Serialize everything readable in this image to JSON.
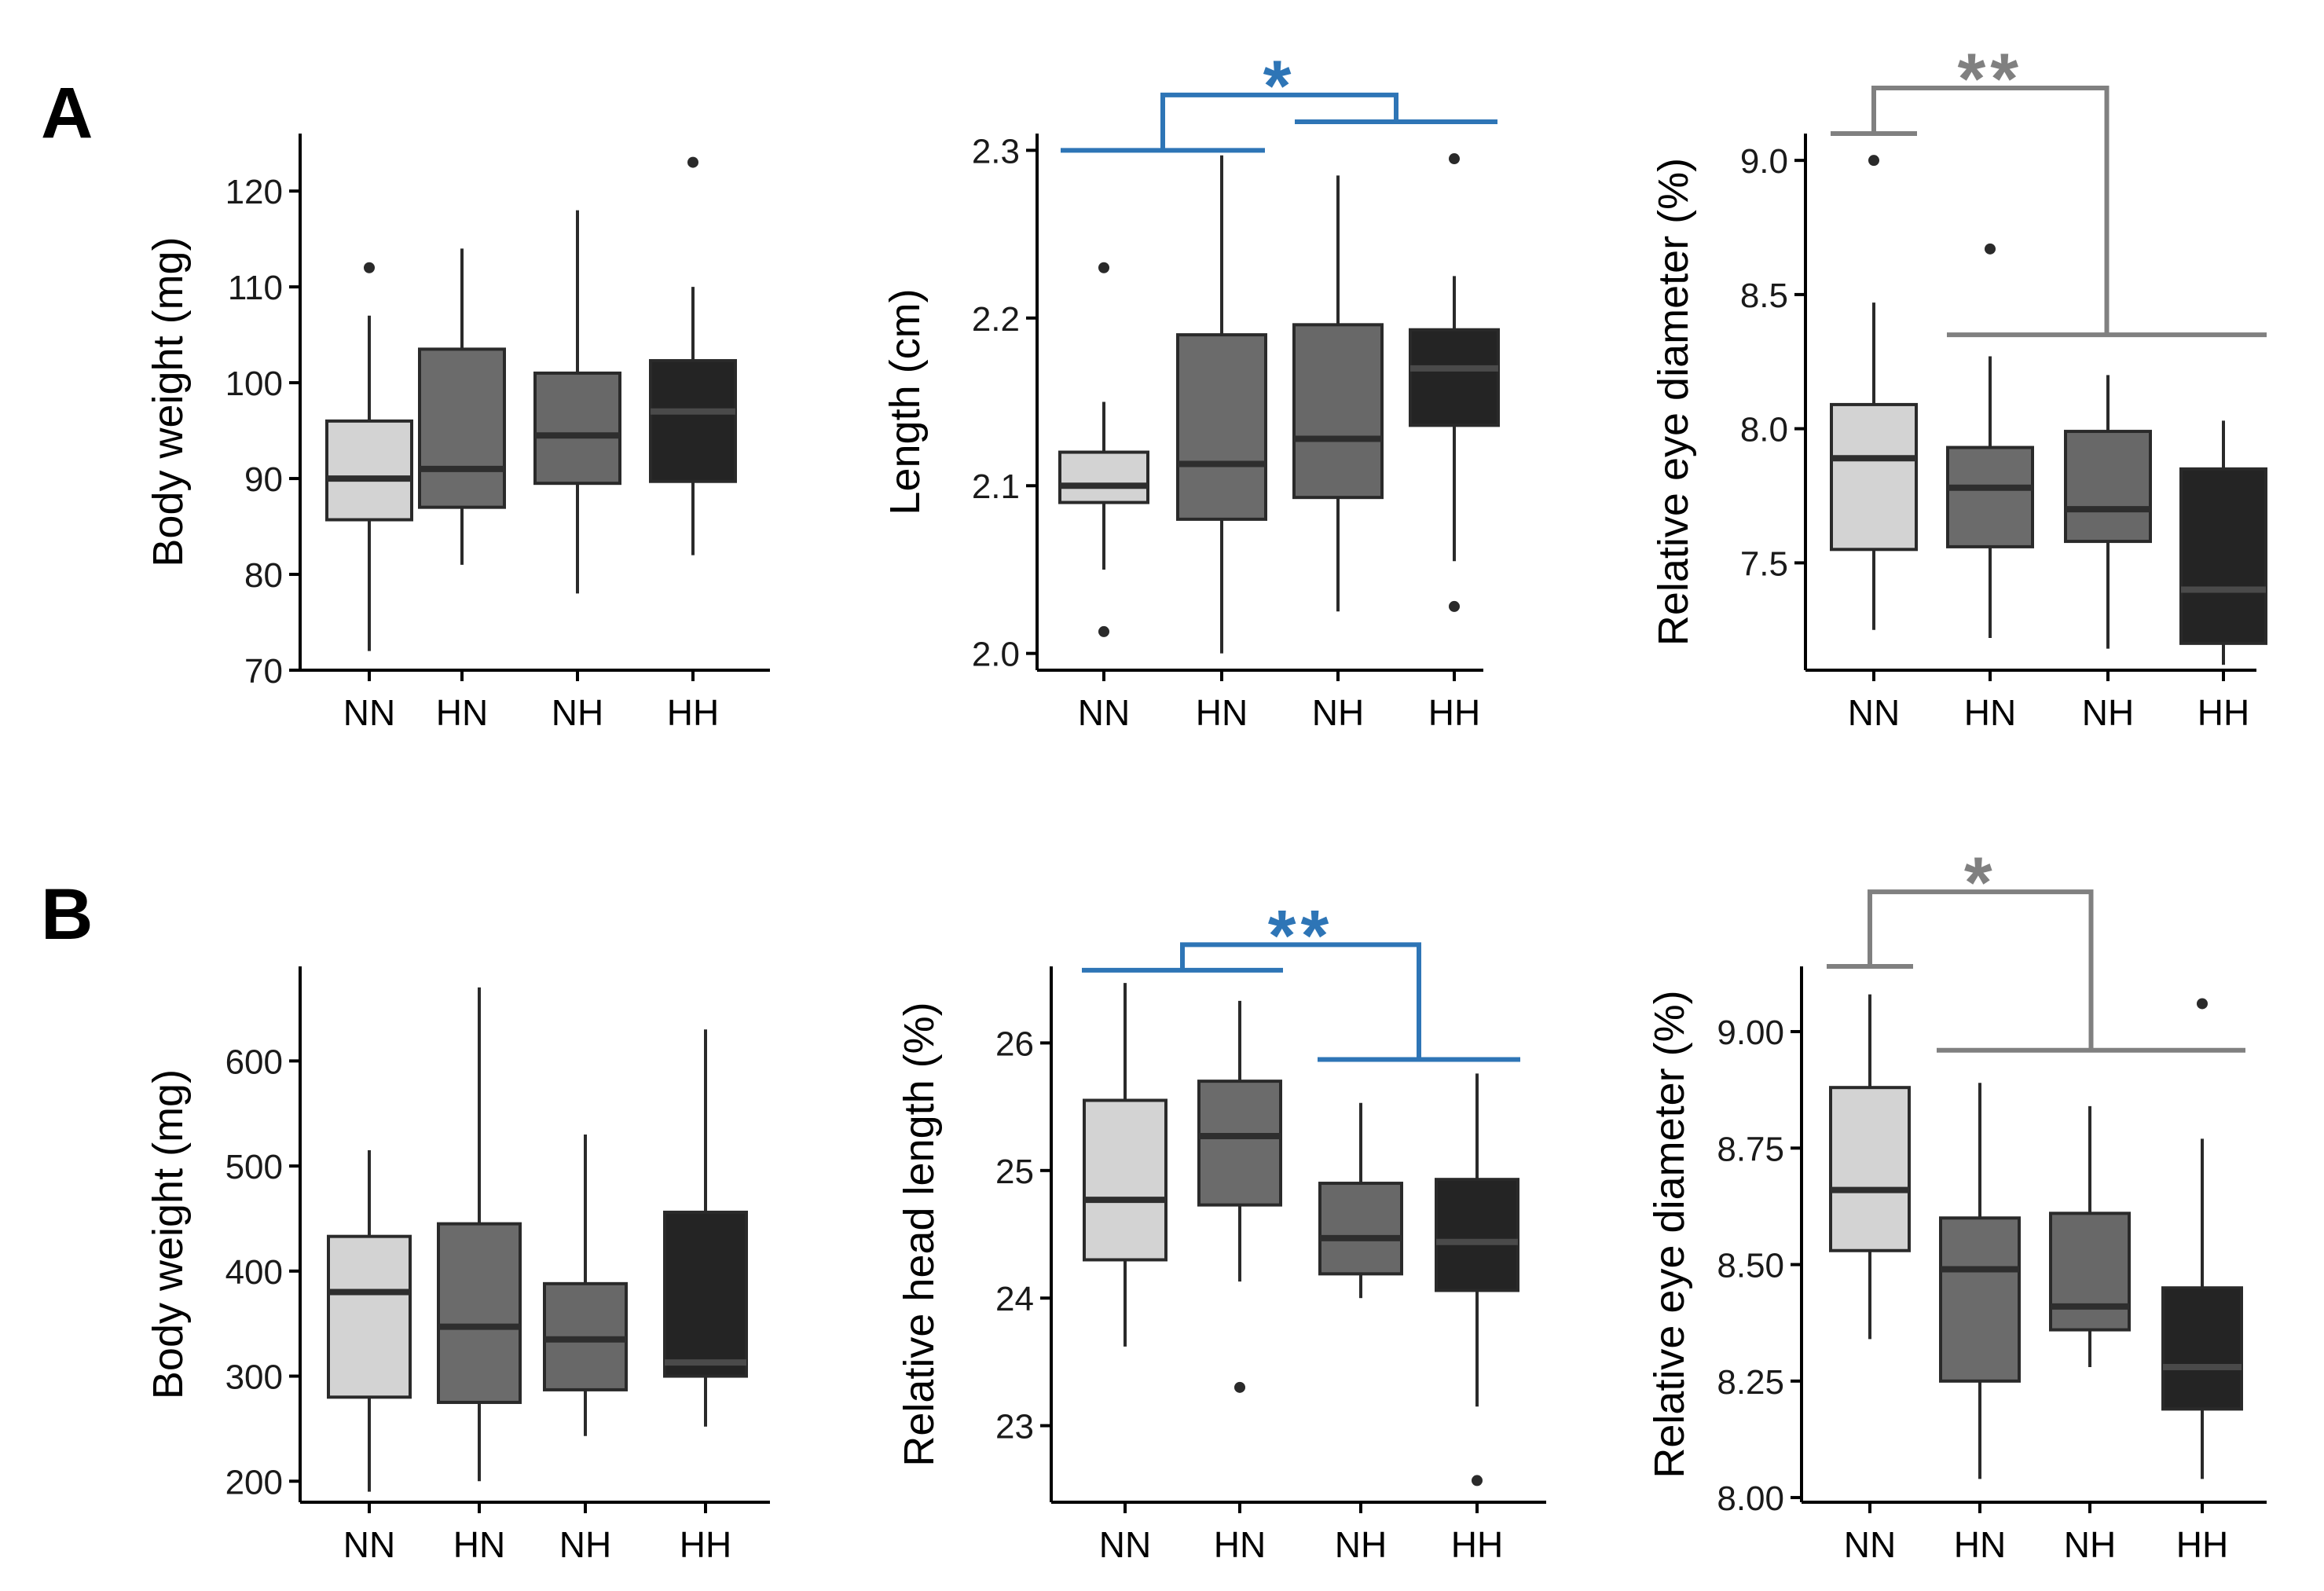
{
  "figure": {
    "panel_labels": [
      "A",
      "B"
    ],
    "box_colors": [
      "#d3d3d3",
      "#6b6b6b",
      "#686868",
      "#242424"
    ],
    "median_colors": [
      "#2e2e2e",
      "#2e2e2e",
      "#2e2e2e",
      "#4a4a4a"
    ],
    "sig_colors": {
      "blue": "#2e75b6",
      "gray": "#808080"
    }
  },
  "chart_data": [
    {
      "id": "A1",
      "panel": "A",
      "type": "box",
      "ylabel": "Body weight (mg)",
      "xlabel": "",
      "categories": [
        "NN",
        "HN",
        "NH",
        "HH"
      ],
      "ylim": [
        70,
        126
      ],
      "yticks": [
        70,
        80,
        90,
        100,
        110,
        120
      ],
      "boxes": [
        {
          "whislo": 72,
          "q1": 85.7,
          "median": 90,
          "q3": 96,
          "whishi": 107,
          "fliers": [
            112
          ]
        },
        {
          "whislo": 81,
          "q1": 87,
          "median": 91,
          "q3": 103.5,
          "whishi": 114,
          "fliers": []
        },
        {
          "whislo": 78,
          "q1": 89.5,
          "median": 94.5,
          "q3": 101,
          "whishi": 118,
          "fliers": []
        },
        {
          "whislo": 82,
          "q1": 89.7,
          "median": 97,
          "q3": 102.3,
          "whishi": 110,
          "fliers": [
            123
          ]
        }
      ]
    },
    {
      "id": "A2",
      "panel": "A",
      "type": "box",
      "ylabel": "Length (cm)",
      "xlabel": "",
      "categories": [
        "NN",
        "HN",
        "NH",
        "HH"
      ],
      "ylim": [
        1.99,
        2.31
      ],
      "yticks": [
        2.0,
        2.1,
        2.2,
        2.3
      ],
      "tick_decimals": 1,
      "boxes": [
        {
          "whislo": 2.05,
          "q1": 2.09,
          "median": 2.1,
          "q3": 2.12,
          "whishi": 2.15,
          "fliers": [
            2.23,
            2.013
          ]
        },
        {
          "whislo": 2.0,
          "q1": 2.08,
          "median": 2.113,
          "q3": 2.19,
          "whishi": 2.297,
          "fliers": []
        },
        {
          "whislo": 2.025,
          "q1": 2.093,
          "median": 2.128,
          "q3": 2.196,
          "whishi": 2.285,
          "fliers": []
        },
        {
          "whislo": 2.055,
          "q1": 2.136,
          "median": 2.17,
          "q3": 2.193,
          "whishi": 2.225,
          "fliers": [
            2.295,
            2.028
          ]
        }
      ],
      "significance": {
        "label": "*",
        "color": "blue",
        "left_bar": [
          0,
          1
        ],
        "right_bar": [
          2,
          3
        ],
        "left_y": 2.3,
        "right_y": 2.317,
        "top_y": 2.333
      }
    },
    {
      "id": "A3",
      "panel": "A",
      "type": "box",
      "ylabel": "Relative eye diameter (%)",
      "xlabel": "",
      "categories": [
        "NN",
        "HN",
        "NH",
        "HH"
      ],
      "ylim": [
        7.1,
        9.1
      ],
      "yticks": [
        7.5,
        8.0,
        8.5,
        9.0
      ],
      "tick_decimals": 1,
      "boxes": [
        {
          "whislo": 7.25,
          "q1": 7.55,
          "median": 7.89,
          "q3": 8.09,
          "whishi": 8.47,
          "fliers": [
            9.0
          ]
        },
        {
          "whislo": 7.22,
          "q1": 7.56,
          "median": 7.78,
          "q3": 7.93,
          "whishi": 8.27,
          "fliers": [
            8.67
          ]
        },
        {
          "whislo": 7.18,
          "q1": 7.58,
          "median": 7.7,
          "q3": 7.99,
          "whishi": 8.2,
          "fliers": []
        },
        {
          "whislo": 7.12,
          "q1": 7.2,
          "median": 7.4,
          "q3": 7.85,
          "whishi": 8.03,
          "fliers": []
        }
      ],
      "significance": {
        "label": "**",
        "color": "gray",
        "left_bar": [
          0,
          0
        ],
        "right_bar": [
          1,
          3
        ],
        "left_y": 9.1,
        "right_y": 8.35,
        "top_y": 9.27
      }
    },
    {
      "id": "B1",
      "panel": "B",
      "type": "box",
      "ylabel": "Body weight (mg)",
      "xlabel": "",
      "categories": [
        "NN",
        "HN",
        "NH",
        "HH"
      ],
      "ylim": [
        180,
        690
      ],
      "yticks": [
        200,
        300,
        400,
        500,
        600
      ],
      "boxes": [
        {
          "whislo": 190,
          "q1": 280,
          "median": 380,
          "q3": 433,
          "whishi": 515,
          "fliers": []
        },
        {
          "whislo": 200,
          "q1": 275,
          "median": 347,
          "q3": 445,
          "whishi": 670,
          "fliers": []
        },
        {
          "whislo": 243,
          "q1": 287,
          "median": 335,
          "q3": 388,
          "whishi": 530,
          "fliers": []
        },
        {
          "whislo": 252,
          "q1": 300,
          "median": 313,
          "q3": 456,
          "whishi": 630,
          "fliers": []
        }
      ]
    },
    {
      "id": "B2",
      "panel": "B",
      "type": "box",
      "ylabel": "Relative head length (%)",
      "xlabel": "",
      "categories": [
        "NN",
        "HN",
        "NH",
        "HH"
      ],
      "ylim": [
        22.4,
        26.6
      ],
      "yticks": [
        23,
        24,
        25,
        26
      ],
      "boxes": [
        {
          "whislo": 23.62,
          "q1": 24.3,
          "median": 24.77,
          "q3": 25.55,
          "whishi": 26.47,
          "fliers": []
        },
        {
          "whislo": 24.13,
          "q1": 24.73,
          "median": 25.27,
          "q3": 25.7,
          "whishi": 26.33,
          "fliers": [
            23.3
          ]
        },
        {
          "whislo": 24.0,
          "q1": 24.19,
          "median": 24.47,
          "q3": 24.9,
          "whishi": 25.53,
          "fliers": []
        },
        {
          "whislo": 23.15,
          "q1": 24.06,
          "median": 24.44,
          "q3": 24.93,
          "whishi": 25.76,
          "fliers": [
            22.57
          ]
        }
      ],
      "significance": {
        "label": "**",
        "color": "blue",
        "left_bar": [
          0,
          1
        ],
        "right_bar": [
          2,
          3
        ],
        "left_y": 26.57,
        "right_y": 25.87,
        "top_y": 26.77
      }
    },
    {
      "id": "B3",
      "panel": "B",
      "type": "box",
      "ylabel": "Relative eye diameter (%)",
      "xlabel": "",
      "categories": [
        "NN",
        "HN",
        "NH",
        "HH"
      ],
      "ylim": [
        7.99,
        9.14
      ],
      "yticks": [
        8.0,
        8.25,
        8.5,
        8.75,
        9.0
      ],
      "tick_decimals": 2,
      "boxes": [
        {
          "whislo": 8.34,
          "q1": 8.53,
          "median": 8.66,
          "q3": 8.88,
          "whishi": 9.08,
          "fliers": []
        },
        {
          "whislo": 8.04,
          "q1": 8.25,
          "median": 8.49,
          "q3": 8.6,
          "whishi": 8.89,
          "fliers": []
        },
        {
          "whislo": 8.28,
          "q1": 8.36,
          "median": 8.41,
          "q3": 8.61,
          "whishi": 8.84,
          "fliers": []
        },
        {
          "whislo": 8.04,
          "q1": 8.19,
          "median": 8.28,
          "q3": 8.45,
          "whishi": 8.77,
          "fliers": [
            9.06
          ]
        }
      ],
      "significance": {
        "label": "*",
        "color": "gray",
        "left_bar": [
          0,
          0
        ],
        "right_bar": [
          1,
          3
        ],
        "left_y": 9.14,
        "right_y": 8.96,
        "top_y": 9.3
      }
    }
  ]
}
